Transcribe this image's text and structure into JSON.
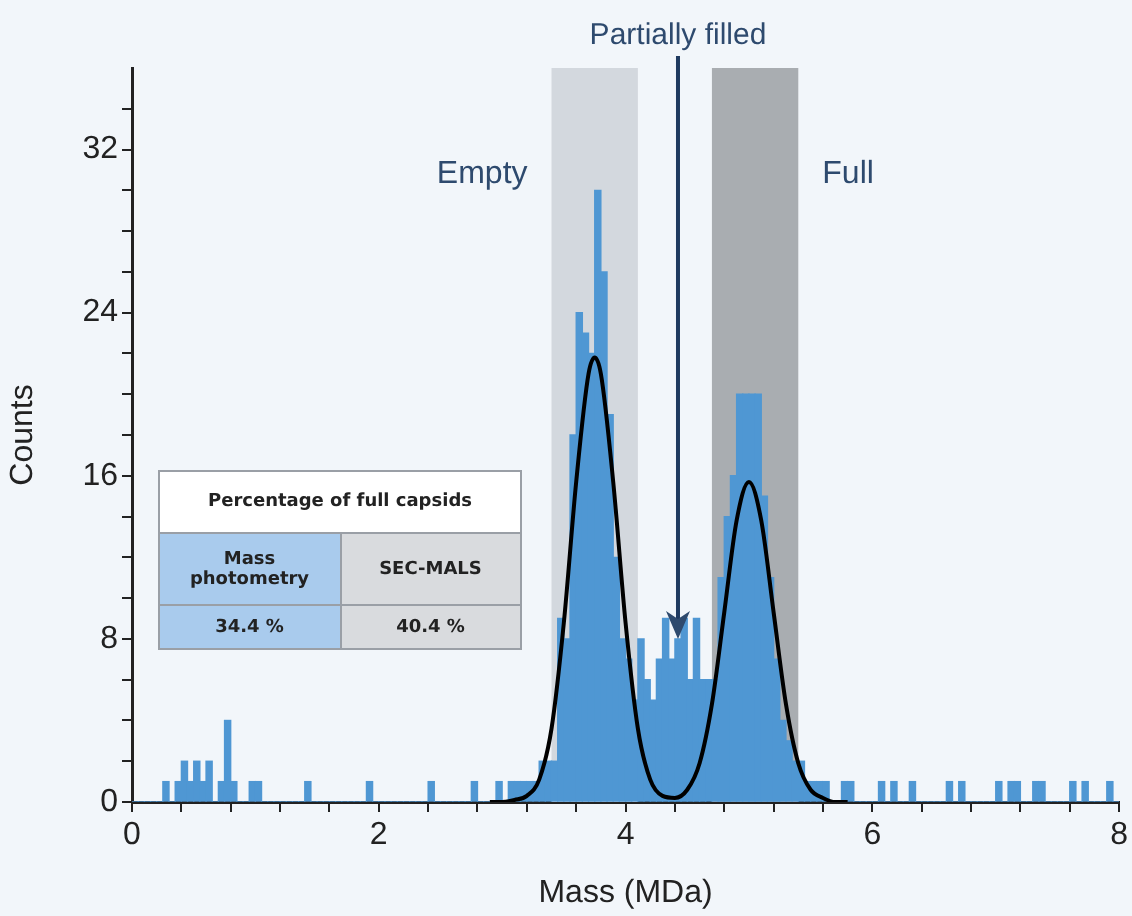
{
  "chart_data": {
    "type": "histogram",
    "xlabel": "Mass (MDa)",
    "ylabel": "Counts",
    "color": "#4f97d3",
    "bins": [
      0,
      0.05,
      0.1,
      0.15,
      0.2,
      0.25,
      0.3,
      0.35,
      0.4,
      0.45,
      0.5,
      0.55,
      0.6,
      0.65,
      0.7,
      0.75,
      0.8,
      0.85,
      0.9,
      0.95,
      1,
      1.05,
      1.1,
      1.15,
      1.2,
      1.25,
      1.3,
      1.35,
      1.4,
      1.45,
      1.5,
      1.55,
      1.6,
      1.65,
      1.7,
      1.75,
      1.8,
      1.85,
      1.9,
      1.95,
      2,
      2.05,
      2.1,
      2.15,
      2.2,
      2.25,
      2.3,
      2.35,
      2.4,
      2.45,
      2.5,
      2.55,
      2.6,
      2.65,
      2.7,
      2.75,
      2.8,
      2.85,
      2.9,
      2.95,
      3,
      3.05,
      3.1,
      3.15,
      3.2,
      3.25,
      3.3,
      3.35,
      3.4,
      3.45,
      3.5,
      3.55,
      3.6,
      3.65,
      3.7,
      3.75,
      3.8,
      3.85,
      3.9,
      3.95,
      4,
      4.05,
      4.1,
      4.15,
      4.2,
      4.25,
      4.3,
      4.35,
      4.4,
      4.45,
      4.5,
      4.55,
      4.6,
      4.65,
      4.7,
      4.75,
      4.8,
      4.85,
      4.9,
      4.95,
      5,
      5.05,
      5.1,
      5.15,
      5.2,
      5.25,
      5.3,
      5.35,
      5.4,
      5.45,
      5.5,
      5.55,
      5.6,
      5.65,
      5.7,
      5.75,
      5.8,
      5.85,
      5.9,
      5.95,
      6,
      6.05,
      6.1,
      6.15,
      6.2,
      6.25,
      6.3,
      6.35,
      6.4,
      6.45,
      6.5,
      6.55,
      6.6,
      6.65,
      6.7,
      6.75,
      6.8,
      6.85,
      6.9,
      6.95,
      7,
      7.05,
      7.1,
      7.15,
      7.2,
      7.25,
      7.3,
      7.35,
      7.4,
      7.45,
      7.5,
      7.55,
      7.6,
      7.65,
      7.7,
      7.75,
      7.8,
      7.85,
      7.9,
      7.95,
      8
    ],
    "values": [
      0,
      0,
      0,
      0,
      0,
      1,
      0,
      1,
      2,
      1,
      2,
      1,
      2,
      0,
      1,
      4,
      1,
      0,
      0,
      1,
      1,
      0,
      0,
      0,
      0,
      0,
      0,
      0,
      1,
      0,
      0,
      0,
      0,
      0,
      0,
      0,
      0,
      0,
      1,
      0,
      0,
      0,
      0,
      0,
      0,
      0,
      0,
      0,
      1,
      0,
      0,
      0,
      0,
      0,
      0,
      1,
      0,
      0,
      0,
      1,
      0,
      1,
      1,
      1,
      1,
      1,
      2,
      2,
      2,
      9,
      8,
      18,
      24,
      23,
      22,
      30,
      26,
      19,
      12,
      8,
      7,
      5,
      8,
      6,
      5,
      7,
      9,
      7,
      8,
      9,
      6,
      9,
      6,
      6,
      6,
      11,
      14,
      16,
      20,
      20,
      20,
      20,
      15,
      11,
      7,
      4,
      3,
      2,
      2,
      1,
      1,
      1,
      1,
      0,
      0,
      1,
      1,
      0,
      0,
      0,
      0,
      1,
      0,
      1,
      0,
      0,
      1,
      0,
      0,
      0,
      0,
      0,
      1,
      0,
      1,
      0,
      0,
      0,
      0,
      0,
      1,
      0,
      1,
      1,
      0,
      0,
      1,
      1,
      0,
      0,
      0,
      0,
      1,
      0,
      1,
      0,
      0,
      0,
      1,
      0
    ],
    "series": [
      {
        "type": "line",
        "color": "#000000",
        "x": [
          2.9,
          3.0,
          3.1,
          3.2,
          3.3,
          3.4,
          3.5,
          3.6,
          3.7,
          3.75,
          3.8,
          3.9,
          4.0,
          4.1,
          4.2,
          4.3,
          4.4,
          4.5,
          4.6,
          4.7,
          4.8,
          4.9,
          5.0,
          5.1,
          5.2,
          5.3,
          5.4,
          5.5,
          5.6,
          5.7,
          5.8
        ],
        "values": [
          0,
          0,
          0.1,
          0.3,
          1.1,
          3.6,
          8.8,
          15.7,
          21.0,
          21.8,
          21.0,
          15.7,
          8.8,
          3.6,
          1.1,
          0.3,
          0.2,
          0.6,
          1.9,
          4.8,
          9.3,
          13.8,
          15.7,
          13.8,
          9.3,
          4.8,
          1.9,
          0.6,
          0.2,
          0,
          0
        ]
      }
    ],
    "marker": "none",
    "line_style": "solid",
    "bands": [
      {
        "axis": "x",
        "from": 3.4,
        "to": 4.1,
        "label": "Empty",
        "color": "#d3d8de"
      },
      {
        "axis": "x",
        "from": 4.7,
        "to": 5.4,
        "label": "Full",
        "color": "#a9adb1"
      }
    ],
    "annotations": [
      {
        "text": "Partially filled",
        "x": 4.425,
        "y": 8
      },
      "Percentage of full capsids",
      "Mass photometry",
      "SEC-MALS",
      "34.4 %",
      "40.4 %"
    ],
    "xlim": [
      0,
      8
    ],
    "xticks": [
      0,
      {
        "value": 0.4,
        "label": null
      },
      {
        "value": 0.8,
        "label": null
      },
      {
        "value": 1.2,
        "label": null
      },
      {
        "value": 1.6,
        "label": null
      },
      2,
      {
        "value": 2.4,
        "label": null
      },
      {
        "value": 2.8,
        "label": null
      },
      {
        "value": 3.2,
        "label": null
      },
      {
        "value": 3.6,
        "label": null
      },
      4,
      {
        "value": 4.4,
        "label": null
      },
      {
        "value": 4.8,
        "label": null
      },
      {
        "value": 5.2,
        "label": null
      },
      {
        "value": 5.6,
        "label": null
      },
      6,
      {
        "value": 6.4,
        "label": null
      },
      {
        "value": 6.8,
        "label": null
      },
      {
        "value": 7.2,
        "label": null
      },
      {
        "value": 7.6,
        "label": null
      },
      8
    ],
    "ylim": [
      0,
      36
    ],
    "yticks": [
      0,
      {
        "value": 2,
        "label": null
      },
      {
        "value": 4,
        "label": null
      },
      {
        "value": 6,
        "label": null
      },
      8,
      {
        "value": 10,
        "label": null
      },
      {
        "value": 12,
        "label": null
      },
      {
        "value": 14,
        "label": null
      },
      16,
      {
        "value": 18,
        "label": null
      },
      {
        "value": 20,
        "label": null
      },
      {
        "value": 22,
        "label": null
      },
      24,
      {
        "value": 26,
        "label": null
      },
      {
        "value": 28,
        "label": null
      },
      {
        "value": 30,
        "label": null
      },
      32,
      {
        "value": 34,
        "label": null
      }
    ],
    "grid": false,
    "legend": false
  }
}
